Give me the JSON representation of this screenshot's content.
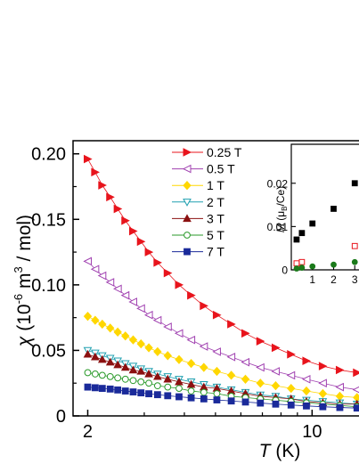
{
  "chart_data": [
    {
      "type": "scatter",
      "panel": "main",
      "xlabel": "T (K)",
      "xlabel_var": "T",
      "xlabel_unit": " (K)",
      "ylabel": "χ (10^-6 m^3 / mol)",
      "ylabel_var": "χ",
      "ylabel_open": " (10",
      "ylabel_exp1": "-6",
      "ylabel_mid": " m",
      "ylabel_exp2": "3",
      "ylabel_close": " / mol)",
      "x_scale": "log",
      "xlim": [
        1.8,
        14
      ],
      "ylim": [
        0,
        0.21
      ],
      "x_ticks": [
        2,
        10
      ],
      "x_tick_labels": [
        "2",
        "10"
      ],
      "y_ticks": [
        0,
        0.05,
        0.1,
        0.15,
        0.2
      ],
      "y_tick_labels": [
        "0",
        "0.05",
        "0.10",
        "0.15",
        "0.20"
      ],
      "legend_position": "top-center",
      "grid": false,
      "series": [
        {
          "name": "0.25 T",
          "color": "#e8141c",
          "marker": "triangle-right",
          "filled": true,
          "x": [
            2.0,
            2.11,
            2.22,
            2.35,
            2.48,
            2.62,
            2.77,
            2.93,
            3.1,
            3.3,
            3.55,
            3.85,
            4.2,
            4.6,
            5.05,
            5.6,
            6.2,
            6.9,
            7.7,
            8.6,
            9.6,
            10.8,
            12.2,
            13.8
          ],
          "y": [
            0.196,
            0.186,
            0.176,
            0.167,
            0.158,
            0.149,
            0.141,
            0.133,
            0.125,
            0.117,
            0.109,
            0.1,
            0.092,
            0.084,
            0.077,
            0.07,
            0.063,
            0.057,
            0.052,
            0.047,
            0.042,
            0.038,
            0.035,
            0.033
          ]
        },
        {
          "name": "0.5 T",
          "color": "#a040b0",
          "marker": "triangle-left",
          "filled": false,
          "x": [
            2.0,
            2.11,
            2.22,
            2.35,
            2.48,
            2.62,
            2.77,
            2.93,
            3.1,
            3.3,
            3.55,
            3.85,
            4.2,
            4.6,
            5.05,
            5.6,
            6.2,
            6.9,
            7.7,
            8.6,
            9.6,
            10.8,
            12.2,
            13.8
          ],
          "y": [
            0.118,
            0.112,
            0.107,
            0.102,
            0.097,
            0.092,
            0.087,
            0.082,
            0.077,
            0.073,
            0.068,
            0.063,
            0.058,
            0.053,
            0.049,
            0.045,
            0.041,
            0.037,
            0.034,
            0.031,
            0.028,
            0.025,
            0.022,
            0.02
          ]
        },
        {
          "name": "1 T",
          "color": "#ffd700",
          "marker": "diamond",
          "filled": true,
          "x": [
            2.0,
            2.11,
            2.22,
            2.35,
            2.48,
            2.62,
            2.77,
            2.93,
            3.1,
            3.3,
            3.55,
            3.85,
            4.2,
            4.6,
            5.05,
            5.6,
            6.2,
            6.9,
            7.7,
            8.6,
            9.6,
            10.8,
            12.2,
            13.8
          ],
          "y": [
            0.076,
            0.073,
            0.07,
            0.067,
            0.064,
            0.061,
            0.058,
            0.055,
            0.052,
            0.049,
            0.046,
            0.043,
            0.04,
            0.037,
            0.034,
            0.031,
            0.028,
            0.025,
            0.023,
            0.021,
            0.019,
            0.017,
            0.015,
            0.014
          ]
        },
        {
          "name": "2 T",
          "color": "#20a0b0",
          "marker": "triangle-down",
          "filled": false,
          "x": [
            2.0,
            2.11,
            2.22,
            2.35,
            2.48,
            2.62,
            2.77,
            2.93,
            3.1,
            3.3,
            3.55,
            3.85,
            4.2,
            4.6,
            5.05,
            5.6,
            6.2,
            6.9,
            7.7,
            8.6,
            9.6,
            10.8,
            12.2,
            13.8
          ],
          "y": [
            0.05,
            0.048,
            0.046,
            0.044,
            0.042,
            0.04,
            0.038,
            0.036,
            0.034,
            0.032,
            0.03,
            0.028,
            0.026,
            0.024,
            0.022,
            0.02,
            0.018,
            0.016,
            0.015,
            0.013,
            0.012,
            0.011,
            0.01,
            0.009
          ]
        },
        {
          "name": "3 T",
          "color": "#8b1010",
          "marker": "triangle-up",
          "filled": true,
          "x": [
            2.0,
            2.11,
            2.22,
            2.35,
            2.48,
            2.62,
            2.77,
            2.93,
            3.1,
            3.3,
            3.55,
            3.85,
            4.2,
            4.6,
            5.05,
            5.6,
            6.2,
            6.9,
            7.7,
            8.6,
            9.6,
            10.8,
            12.2,
            13.8
          ],
          "y": [
            0.047,
            0.045,
            0.043,
            0.041,
            0.039,
            0.037,
            0.035,
            0.034,
            0.032,
            0.03,
            0.028,
            0.026,
            0.024,
            0.022,
            0.021,
            0.019,
            0.017,
            0.015,
            0.014,
            0.013,
            0.011,
            0.01,
            0.009,
            0.009
          ]
        },
        {
          "name": "5 T",
          "color": "#2a9a2a",
          "marker": "circle",
          "filled": false,
          "x": [
            2.0,
            2.11,
            2.22,
            2.35,
            2.48,
            2.62,
            2.77,
            2.93,
            3.1,
            3.3,
            3.55,
            3.85,
            4.2,
            4.6,
            5.05,
            5.6,
            6.2,
            6.9,
            7.7,
            8.6,
            9.6,
            10.8,
            12.2,
            13.8
          ],
          "y": [
            0.033,
            0.032,
            0.031,
            0.03,
            0.029,
            0.028,
            0.027,
            0.026,
            0.025,
            0.023,
            0.022,
            0.021,
            0.019,
            0.018,
            0.017,
            0.015,
            0.014,
            0.013,
            0.012,
            0.011,
            0.01,
            0.009,
            0.008,
            0.007
          ]
        },
        {
          "name": "7 T",
          "color": "#1a2a9a",
          "marker": "square",
          "filled": true,
          "x": [
            2.0,
            2.11,
            2.22,
            2.35,
            2.48,
            2.62,
            2.77,
            2.93,
            3.1,
            3.3,
            3.55,
            3.85,
            4.2,
            4.6,
            5.05,
            5.6,
            6.2,
            6.9,
            7.7,
            8.6,
            9.6,
            10.8,
            12.2,
            13.8
          ],
          "y": [
            0.022,
            0.0215,
            0.021,
            0.0205,
            0.0198,
            0.019,
            0.0183,
            0.0176,
            0.0169,
            0.0162,
            0.0154,
            0.0146,
            0.0138,
            0.013,
            0.0122,
            0.0114,
            0.0106,
            0.0098,
            0.009,
            0.0083,
            0.0076,
            0.007,
            0.0064,
            0.006
          ]
        }
      ]
    },
    {
      "type": "scatter",
      "panel": "inset",
      "ylabel": "M (μB/Ce)",
      "ylabel_var": "M",
      "ylabel_open": " (μ",
      "ylabel_sub": "B",
      "ylabel_close": "/Ce)",
      "xlabel": "",
      "xlim": [
        0,
        3.2
      ],
      "ylim": [
        0,
        0.029
      ],
      "x_ticks": [
        1,
        2,
        3
      ],
      "x_tick_labels": [
        "1",
        "2",
        "3"
      ],
      "y_ticks": [
        0,
        0.01,
        0.02
      ],
      "y_tick_labels": [
        "0",
        "0.01",
        "0.02"
      ],
      "grid": false,
      "series": [
        {
          "color": "#000000",
          "marker": "square",
          "filled": true,
          "x": [
            0.25,
            0.5,
            1,
            2,
            3
          ],
          "y": [
            0.007,
            0.0085,
            0.0107,
            0.0141,
            0.02
          ]
        },
        {
          "color": "#e8141c",
          "marker": "square",
          "filled": false,
          "x": [
            0.25,
            0.5,
            3
          ],
          "y": [
            0.0015,
            0.0018,
            0.0055
          ]
        },
        {
          "color": "#1a7a1a",
          "marker": "circle",
          "filled": true,
          "x": [
            0.25,
            0.5,
            1,
            2,
            3
          ],
          "y": [
            0.0003,
            0.0005,
            0.0008,
            0.0012,
            0.0018
          ]
        }
      ]
    }
  ]
}
